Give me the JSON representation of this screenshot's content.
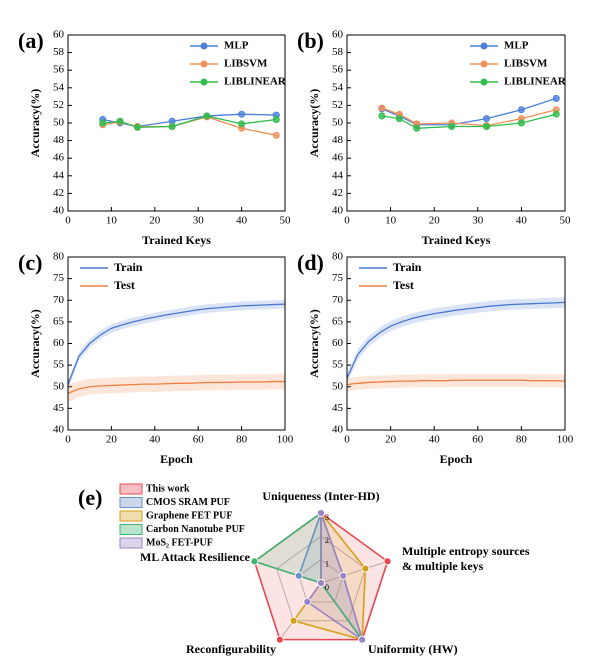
{
  "chart_data": [
    {
      "type": "line",
      "panel_label": "(a)",
      "xlabel": "Trained Keys",
      "ylabel": "Accuracy(%)",
      "x": [
        8,
        12,
        16,
        24,
        32,
        40,
        48
      ],
      "markers": true,
      "legend": "upper right",
      "xlim": [
        0,
        50
      ],
      "xticks": [
        0,
        10,
        20,
        30,
        40,
        50
      ],
      "ylim": [
        40,
        60
      ],
      "yticks": [
        40,
        42,
        44,
        46,
        48,
        50,
        52,
        54,
        56,
        58,
        60
      ],
      "series": [
        {
          "name": "MLP",
          "color": "#4a7fd9",
          "values": [
            50.4,
            50.0,
            49.6,
            50.2,
            50.8,
            51.0,
            50.9
          ]
        },
        {
          "name": "LIBSVM",
          "color": "#f0905a",
          "values": [
            49.8,
            50.1,
            49.6,
            49.6,
            50.7,
            49.4,
            48.6
          ]
        },
        {
          "name": "LIBLINEAR",
          "color": "#2ebd4e",
          "values": [
            50.0,
            50.2,
            49.5,
            49.6,
            50.8,
            49.9,
            50.4
          ]
        }
      ]
    },
    {
      "type": "line",
      "panel_label": "(b)",
      "xlabel": "Trained Keys",
      "ylabel": "Accuracy(%)",
      "x": [
        8,
        12,
        16,
        24,
        32,
        40,
        48
      ],
      "markers": true,
      "legend": "upper right",
      "xlim": [
        0,
        50
      ],
      "xticks": [
        0,
        10,
        20,
        30,
        40,
        50
      ],
      "ylim": [
        40,
        60
      ],
      "yticks": [
        40,
        42,
        44,
        46,
        48,
        50,
        52,
        54,
        56,
        58,
        60
      ],
      "series": [
        {
          "name": "MLP",
          "color": "#4a7fd9",
          "values": [
            51.6,
            50.8,
            49.8,
            49.8,
            50.5,
            51.5,
            52.8
          ]
        },
        {
          "name": "LIBSVM",
          "color": "#f0905a",
          "values": [
            51.7,
            51.0,
            49.9,
            50.0,
            49.7,
            50.5,
            51.5
          ]
        },
        {
          "name": "LIBLINEAR",
          "color": "#2ebd4e",
          "values": [
            50.8,
            50.5,
            49.4,
            49.6,
            49.6,
            50.0,
            51.0
          ]
        }
      ]
    },
    {
      "type": "line",
      "panel_label": "(c)",
      "xlabel": "Epoch",
      "ylabel": "Accuracy(%)",
      "x": [
        0,
        5,
        10,
        15,
        20,
        25,
        30,
        35,
        40,
        45,
        50,
        55,
        60,
        65,
        70,
        75,
        80,
        85,
        90,
        95,
        100
      ],
      "markers": false,
      "legend": "upper left",
      "xlim": [
        0,
        100
      ],
      "xticks": [
        0,
        20,
        40,
        60,
        80,
        100
      ],
      "ylim": [
        40,
        80
      ],
      "yticks": [
        40,
        45,
        50,
        55,
        60,
        65,
        70,
        75,
        80
      ],
      "series": [
        {
          "name": "Train",
          "color": "#4a78d0",
          "values": [
            50.5,
            57,
            60,
            62,
            63.5,
            64.3,
            65,
            65.6,
            66.1,
            66.6,
            67,
            67.4,
            67.8,
            68.1,
            68.3,
            68.5,
            68.7,
            68.8,
            68.9,
            69,
            69.1
          ],
          "upper": [
            51.5,
            58,
            61,
            63,
            64.5,
            65.3,
            66,
            66.6,
            67.1,
            67.6,
            68,
            68.4,
            68.8,
            69.1,
            69.3,
            69.5,
            69.7,
            69.8,
            69.9,
            70,
            70.1
          ],
          "lower": [
            49.5,
            56,
            59,
            61,
            62.5,
            63.3,
            64,
            64.6,
            65.1,
            65.6,
            66,
            66.4,
            66.8,
            67.1,
            67.3,
            67.5,
            67.7,
            67.8,
            67.9,
            68,
            68.1
          ]
        },
        {
          "name": "Test",
          "color": "#f08040",
          "values": [
            48.5,
            49.5,
            50,
            50.2,
            50.3,
            50.4,
            50.5,
            50.6,
            50.6,
            50.7,
            50.8,
            50.8,
            50.9,
            51,
            51,
            51,
            51.1,
            51.1,
            51.1,
            51.2,
            51.2
          ],
          "upper": [
            50.5,
            51.3,
            51.8,
            52,
            52.1,
            52.2,
            52.3,
            52.4,
            52.4,
            52.5,
            52.6,
            52.6,
            52.7,
            52.8,
            52.8,
            52.8,
            52.9,
            52.9,
            52.9,
            53,
            53
          ],
          "lower": [
            46.5,
            47.7,
            48.2,
            48.4,
            48.5,
            48.6,
            48.7,
            48.8,
            48.8,
            48.9,
            49,
            49,
            49.1,
            49.2,
            49.2,
            49.2,
            49.3,
            49.3,
            49.3,
            49.4,
            49.4
          ]
        }
      ]
    },
    {
      "type": "line",
      "panel_label": "(d)",
      "xlabel": "Epoch",
      "ylabel": "Accuracy(%)",
      "x": [
        0,
        5,
        10,
        15,
        20,
        25,
        30,
        35,
        40,
        45,
        50,
        55,
        60,
        65,
        70,
        75,
        80,
        85,
        90,
        95,
        100
      ],
      "markers": false,
      "legend": "upper left",
      "xlim": [
        0,
        100
      ],
      "xticks": [
        0,
        20,
        40,
        60,
        80,
        100
      ],
      "ylim": [
        40,
        80
      ],
      "yticks": [
        40,
        45,
        50,
        55,
        60,
        65,
        70,
        75,
        80
      ],
      "series": [
        {
          "name": "Train",
          "color": "#4a78d0",
          "values": [
            52,
            57.5,
            60.5,
            62.5,
            64,
            65,
            65.8,
            66.4,
            66.9,
            67.3,
            67.7,
            68,
            68.3,
            68.6,
            68.8,
            69,
            69.1,
            69.2,
            69.3,
            69.4,
            69.5
          ],
          "upper": [
            53.2,
            58.7,
            61.7,
            63.7,
            65.2,
            66.2,
            67,
            67.6,
            68.1,
            68.5,
            68.9,
            69.2,
            69.5,
            69.8,
            70,
            70.2,
            70.3,
            70.4,
            70.5,
            70.6,
            70.7
          ],
          "lower": [
            50.8,
            56.3,
            59.3,
            61.3,
            62.8,
            63.8,
            64.6,
            65.2,
            65.7,
            66.1,
            66.5,
            66.8,
            67.1,
            67.4,
            67.6,
            67.8,
            67.9,
            68,
            68.1,
            68.2,
            68.3
          ]
        },
        {
          "name": "Test",
          "color": "#f08040",
          "values": [
            50.5,
            50.8,
            51,
            51.1,
            51.2,
            51.3,
            51.3,
            51.4,
            51.4,
            51.4,
            51.5,
            51.5,
            51.5,
            51.5,
            51.5,
            51.5,
            51.5,
            51.4,
            51.4,
            51.4,
            51.3
          ],
          "upper": [
            52,
            52.3,
            52.5,
            52.6,
            52.7,
            52.8,
            52.8,
            52.9,
            52.9,
            52.9,
            53,
            53,
            53,
            53,
            53,
            53,
            53,
            52.9,
            52.9,
            52.9,
            52.8
          ],
          "lower": [
            49,
            49.3,
            49.5,
            49.6,
            49.7,
            49.8,
            49.8,
            49.9,
            49.9,
            49.9,
            50,
            50,
            50,
            50,
            50,
            50,
            50,
            49.9,
            49.9,
            49.9,
            49.8
          ]
        }
      ]
    },
    {
      "type": "radar",
      "panel_label": "(e)",
      "categories": [
        [
          "Uniqueness (Inter-HD)"
        ],
        [
          "Multiple entropy sources",
          "& multiple keys"
        ],
        [
          "Uniformity (HW)"
        ],
        [
          "Reconfigurability"
        ],
        [
          "ML Attack Resilience"
        ]
      ],
      "rlim": [
        0,
        3
      ],
      "rticks": [
        0,
        1,
        2,
        3
      ],
      "series": [
        {
          "name": "This work",
          "color": "#e8474f",
          "values": [
            3,
            3,
            3,
            3,
            3
          ]
        },
        {
          "name": "CMOS SRAM PUF",
          "color": "#6b8fc9",
          "values": [
            3,
            1,
            3,
            0,
            1
          ]
        },
        {
          "name": "Graphene FET PUF",
          "color": "#d4a017",
          "values": [
            3,
            2,
            3,
            2,
            0
          ]
        },
        {
          "name": "Carbon Nanotube PUF",
          "color": "#3cb371",
          "values": [
            3,
            0,
            3,
            0,
            3
          ]
        },
        {
          "name": "MoS₂ FET-PUF",
          "color": "#9b84c4",
          "values": [
            3,
            1,
            3,
            1,
            0
          ]
        }
      ]
    }
  ]
}
